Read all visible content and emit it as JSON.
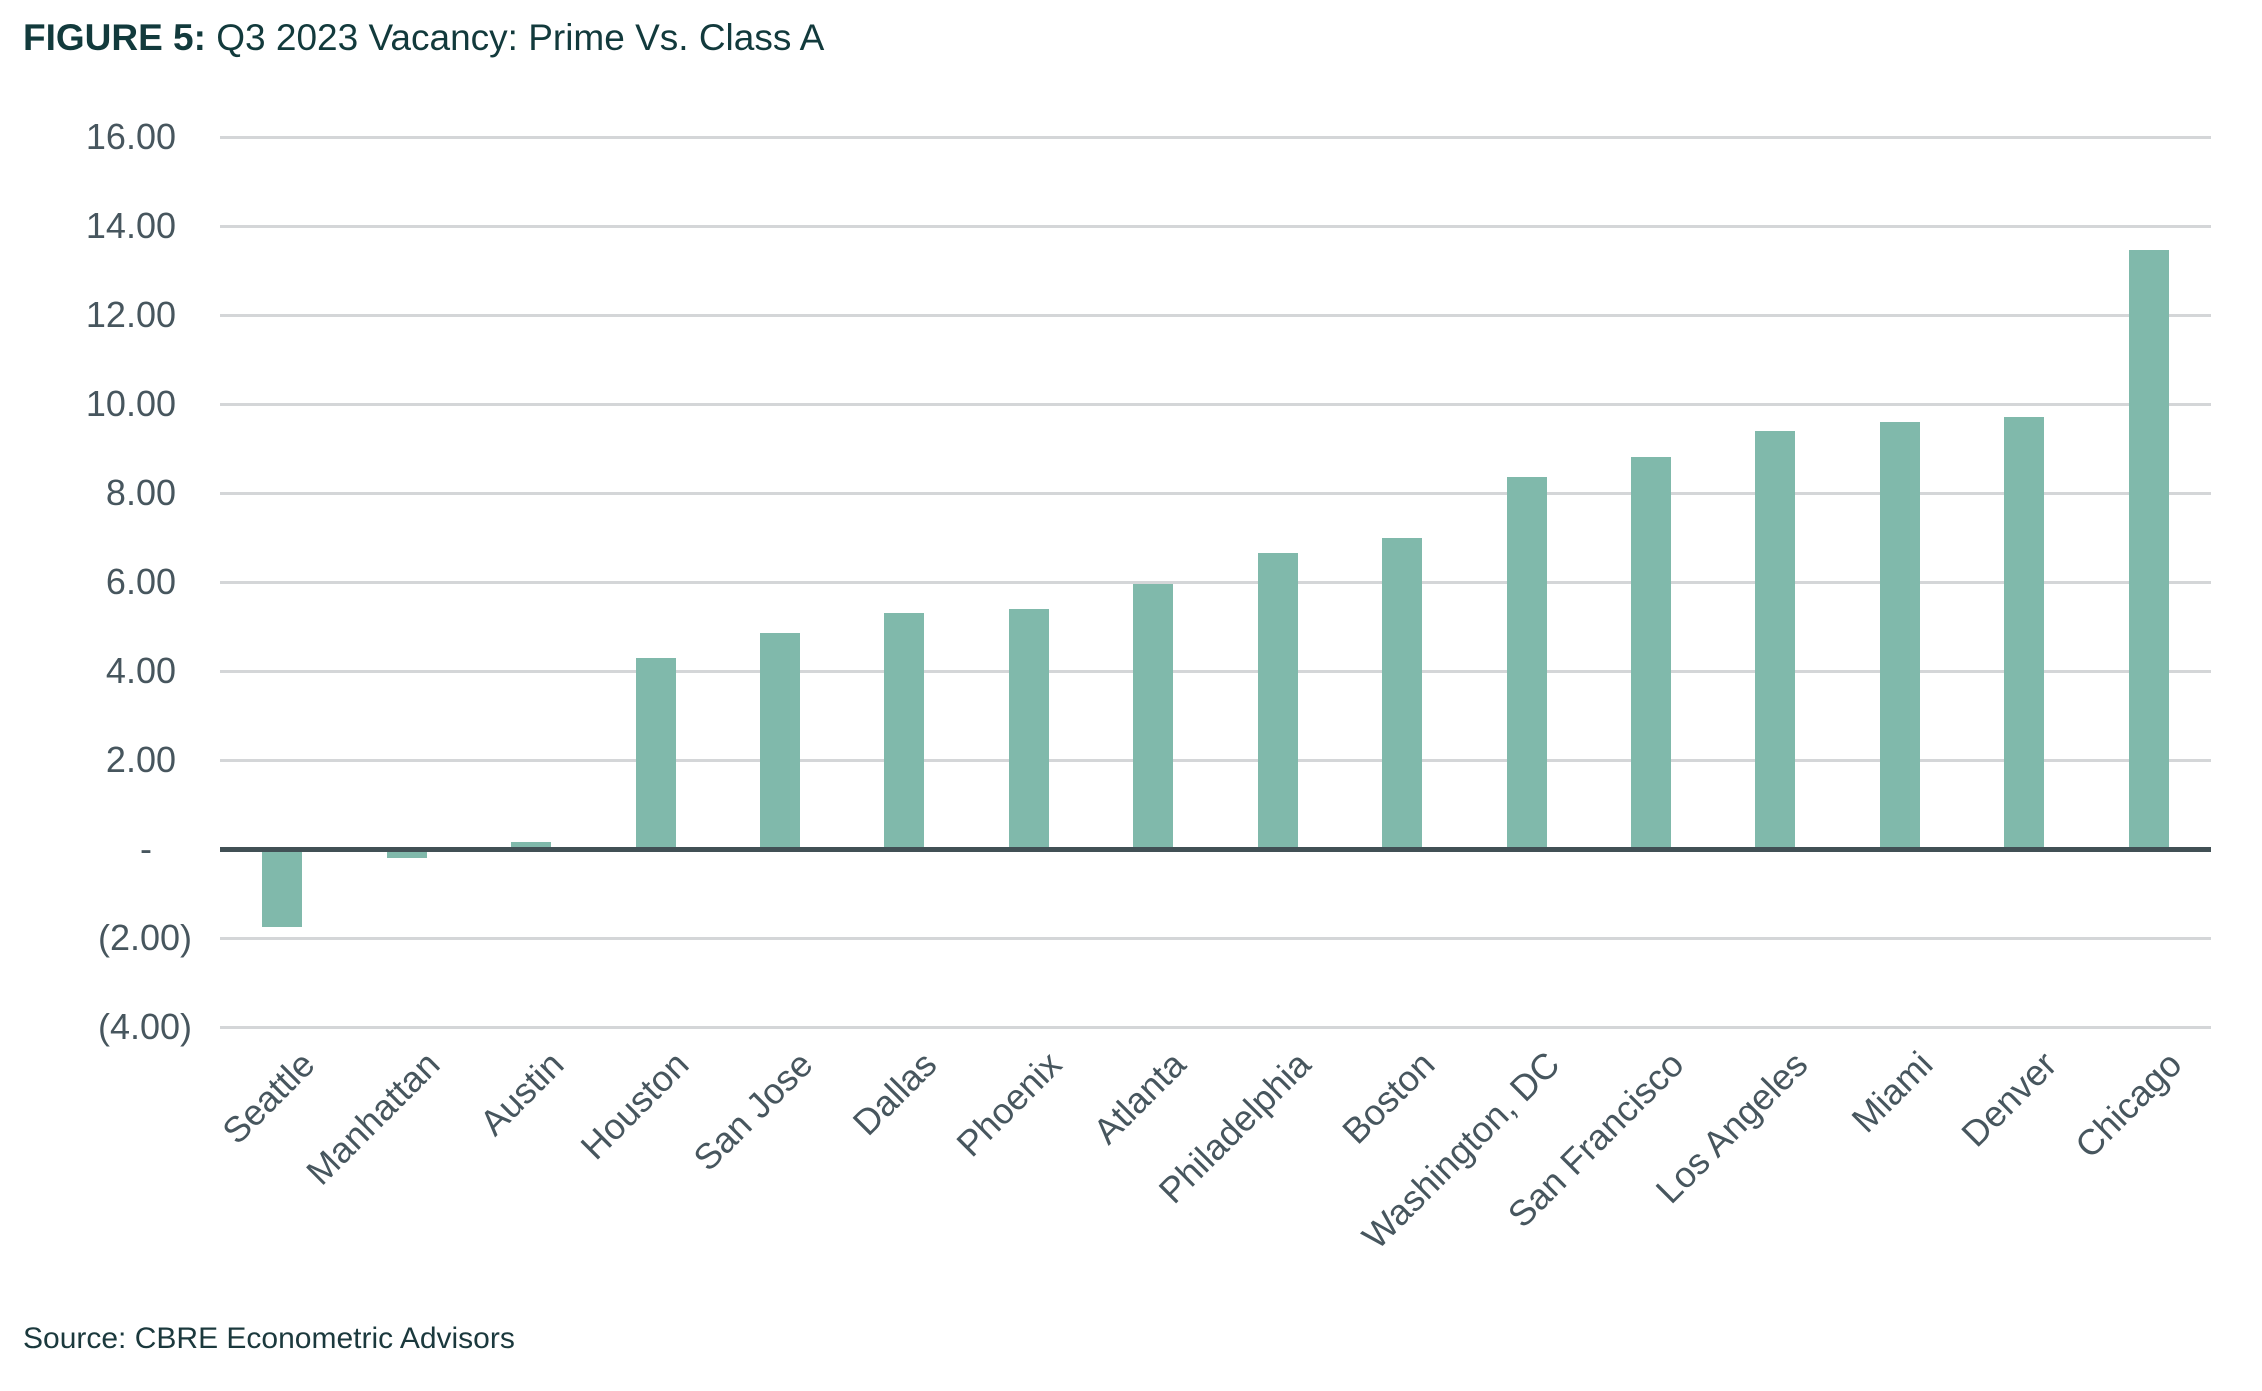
{
  "header": {
    "title_prefix": "FIGURE 5:",
    "title_rest": " Q3 2023 Vacancy: Prime Vs. Class A"
  },
  "footer": {
    "source": "Source: CBRE Econometric Advisors"
  },
  "colors": {
    "bar": "#80b9ab",
    "zero_axis_line": "#415055",
    "gridline": "#d4d6d8",
    "title_text": "#123a3c",
    "tick_text": "#47565e",
    "source_text": "#1b393d"
  },
  "chart_data": {
    "type": "bar",
    "title": "FIGURE 5: Q3 2023 Vacancy: Prime Vs. Class A",
    "xlabel": "",
    "ylabel": "",
    "ylim": [
      -4,
      16
    ],
    "grid": "horizontal",
    "legend": "none",
    "x_label_rotation_deg": 45,
    "categories": [
      "Seattle",
      "Manhattan",
      "Austin",
      "Houston",
      "San Jose",
      "Dallas",
      "Phoenix",
      "Atlanta",
      "Philadelphia",
      "Boston",
      "Washington, DC",
      "San Francisco",
      "Los Angeles",
      "Miami",
      "Denver",
      "Chicago"
    ],
    "values": [
      -1.75,
      -0.2,
      0.15,
      4.3,
      4.85,
      5.3,
      5.4,
      5.95,
      6.65,
      7.0,
      8.35,
      8.8,
      9.4,
      9.6,
      9.7,
      13.45
    ],
    "y_ticks": [
      {
        "value": 16,
        "label": "16.00"
      },
      {
        "value": 14,
        "label": "14.00"
      },
      {
        "value": 12,
        "label": "12.00"
      },
      {
        "value": 10,
        "label": "10.00"
      },
      {
        "value": 8,
        "label": "8.00"
      },
      {
        "value": 6,
        "label": "6.00"
      },
      {
        "value": 4,
        "label": "4.00"
      },
      {
        "value": 2,
        "label": "2.00"
      },
      {
        "value": 0,
        "label": "-"
      },
      {
        "value": -2,
        "label": "(2.00)"
      },
      {
        "value": -4,
        "label": "(4.00)"
      }
    ]
  }
}
